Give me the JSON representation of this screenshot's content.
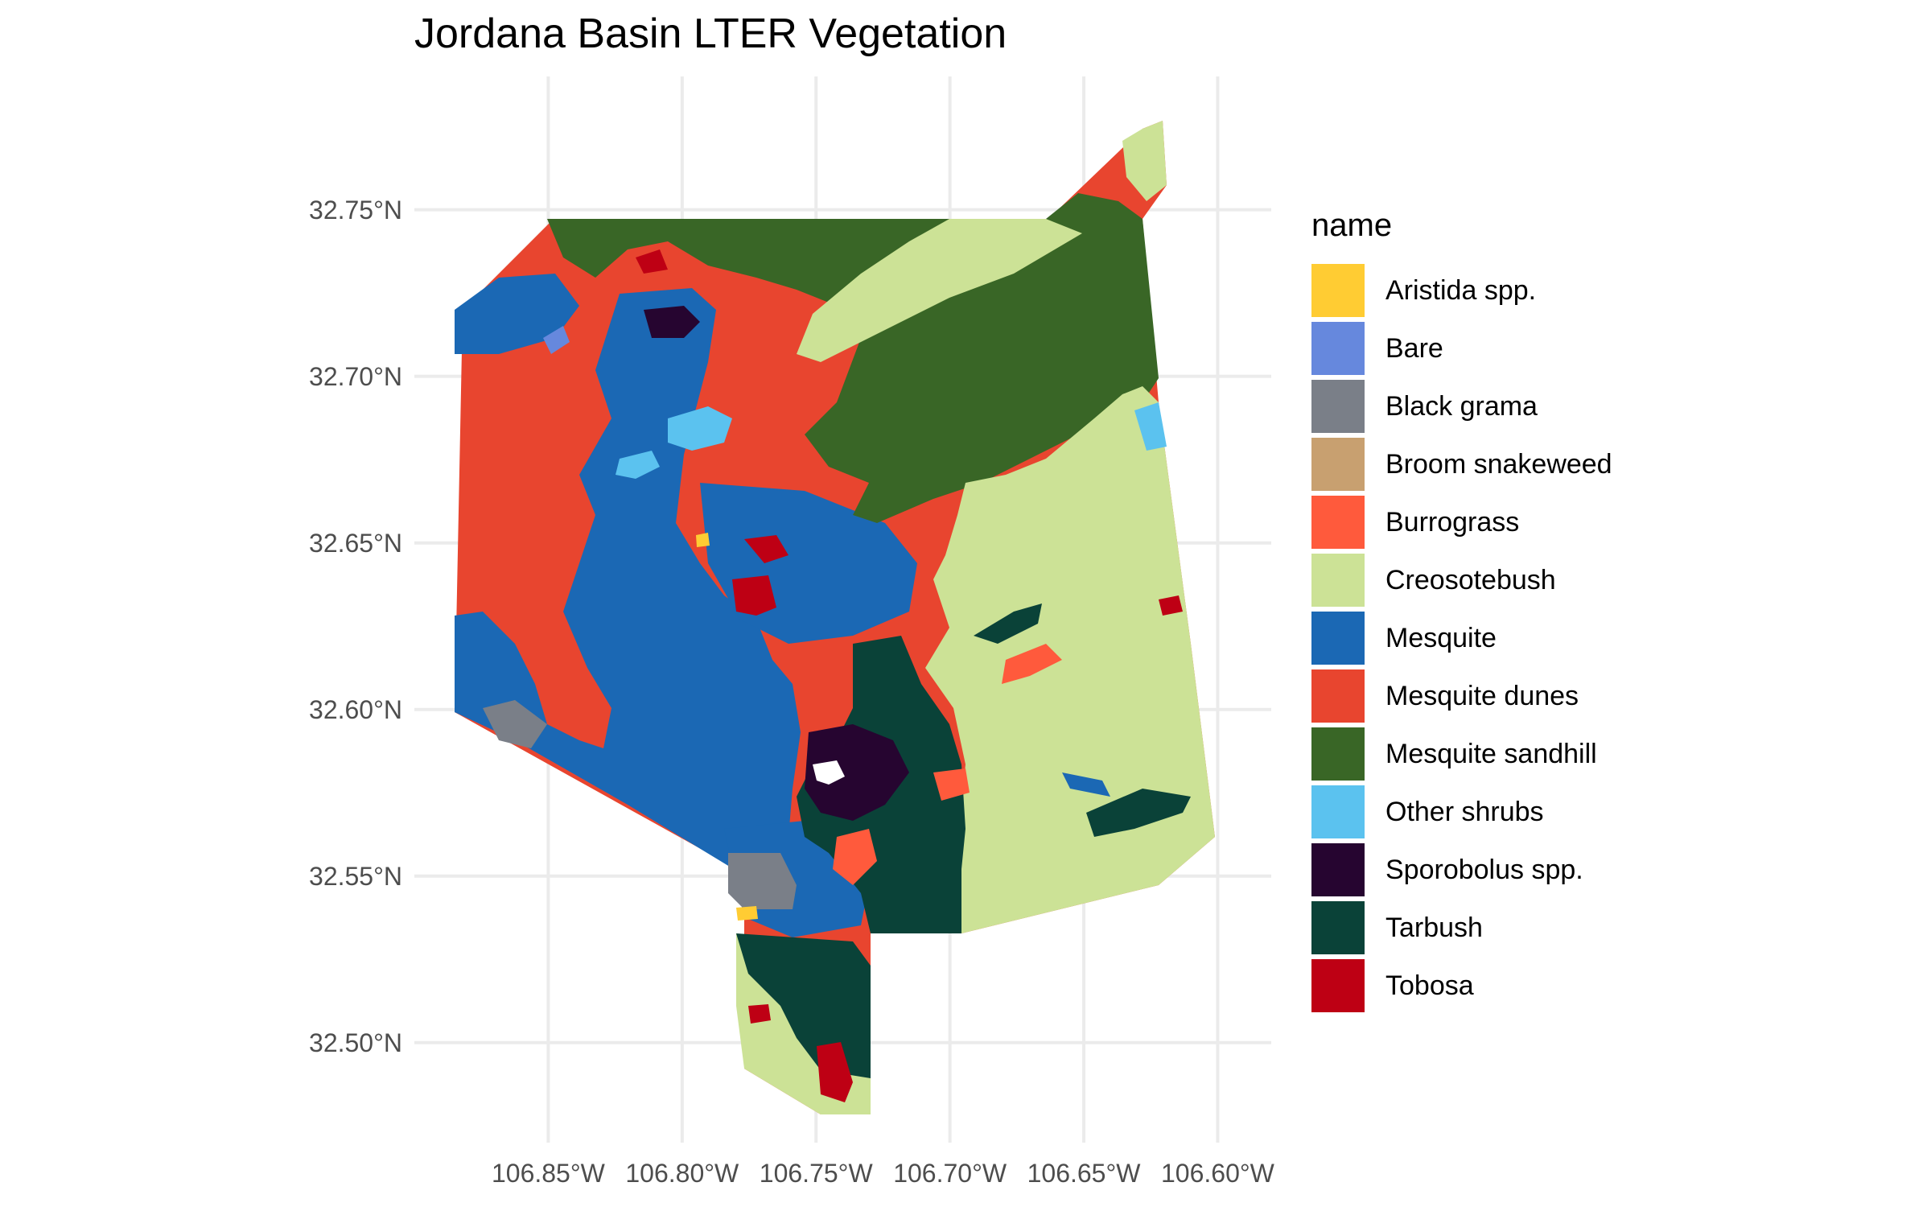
{
  "title": "Jordana Basin LTER Vegetation",
  "axes": {
    "y_ticks": [
      "32.75°N",
      "32.70°N",
      "32.65°N",
      "32.60°N",
      "32.55°N",
      "32.50°N"
    ],
    "x_ticks": [
      "106.85°W",
      "106.80°W",
      "106.75°W",
      "106.70°W",
      "106.65°W",
      "106.60°W"
    ],
    "lat_values": [
      32.75,
      32.7,
      32.65,
      32.6,
      32.55,
      32.5
    ],
    "lon_values": [
      -106.85,
      -106.8,
      -106.75,
      -106.7,
      -106.65,
      -106.6
    ],
    "lat_range": [
      32.47,
      32.79
    ],
    "lon_range": [
      -106.9,
      -106.58
    ],
    "grid": true
  },
  "legend": {
    "title": "name",
    "placement": "right",
    "items": [
      {
        "label": "Aristida spp.",
        "color": "#FFCC33"
      },
      {
        "label": "Bare",
        "color": "#6688DD"
      },
      {
        "label": "Black grama",
        "color": "#7A7F88"
      },
      {
        "label": "Broom snakeweed",
        "color": "#C8A070"
      },
      {
        "label": "Burrograss",
        "color": "#FF5A3C"
      },
      {
        "label": "Creosotebush",
        "color": "#CCE296"
      },
      {
        "label": "Mesquite",
        "color": "#1B68B4"
      },
      {
        "label": "Mesquite dunes",
        "color": "#E8452F"
      },
      {
        "label": "Mesquite sandhill",
        "color": "#396626"
      },
      {
        "label": "Other shrubs",
        "color": "#5BC2EF"
      },
      {
        "label": "Sporobolus spp.",
        "color": "#260530"
      },
      {
        "label": "Tarbush",
        "color": "#0A4238"
      },
      {
        "label": "Tobosa",
        "color": "#BE0014"
      }
    ]
  }
}
